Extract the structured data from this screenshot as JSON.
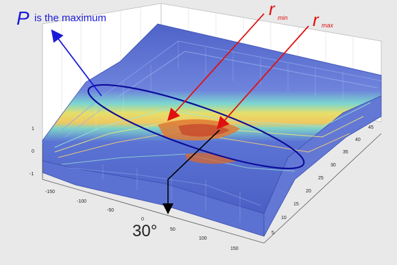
{
  "annotations": {
    "p_letter": "P",
    "p_text": "is the maximum",
    "r_min": {
      "base": "r",
      "sub": "min"
    },
    "r_max": {
      "base": "r",
      "sub": "max"
    },
    "angle": "30°"
  },
  "axes": {
    "z_ticks": [
      "1",
      "0",
      "-1"
    ],
    "x_ticks": [
      "-150",
      "-100",
      "-50",
      "0",
      "50",
      "100",
      "150"
    ],
    "y_ticks": [
      "45",
      "40",
      "35",
      "30",
      "25",
      "20",
      "15",
      "10",
      "5"
    ]
  },
  "colors": {
    "p_annotation": "#1a1ad6",
    "r_annotation": "#e01010",
    "ellipse": "#0c0c9a",
    "angle_arrow": "#000000",
    "surface_low": "#5a6fd6",
    "surface_mid": "#79d4d6",
    "surface_high": "#e8e06a",
    "surface_peak": "#d24a2a"
  }
}
